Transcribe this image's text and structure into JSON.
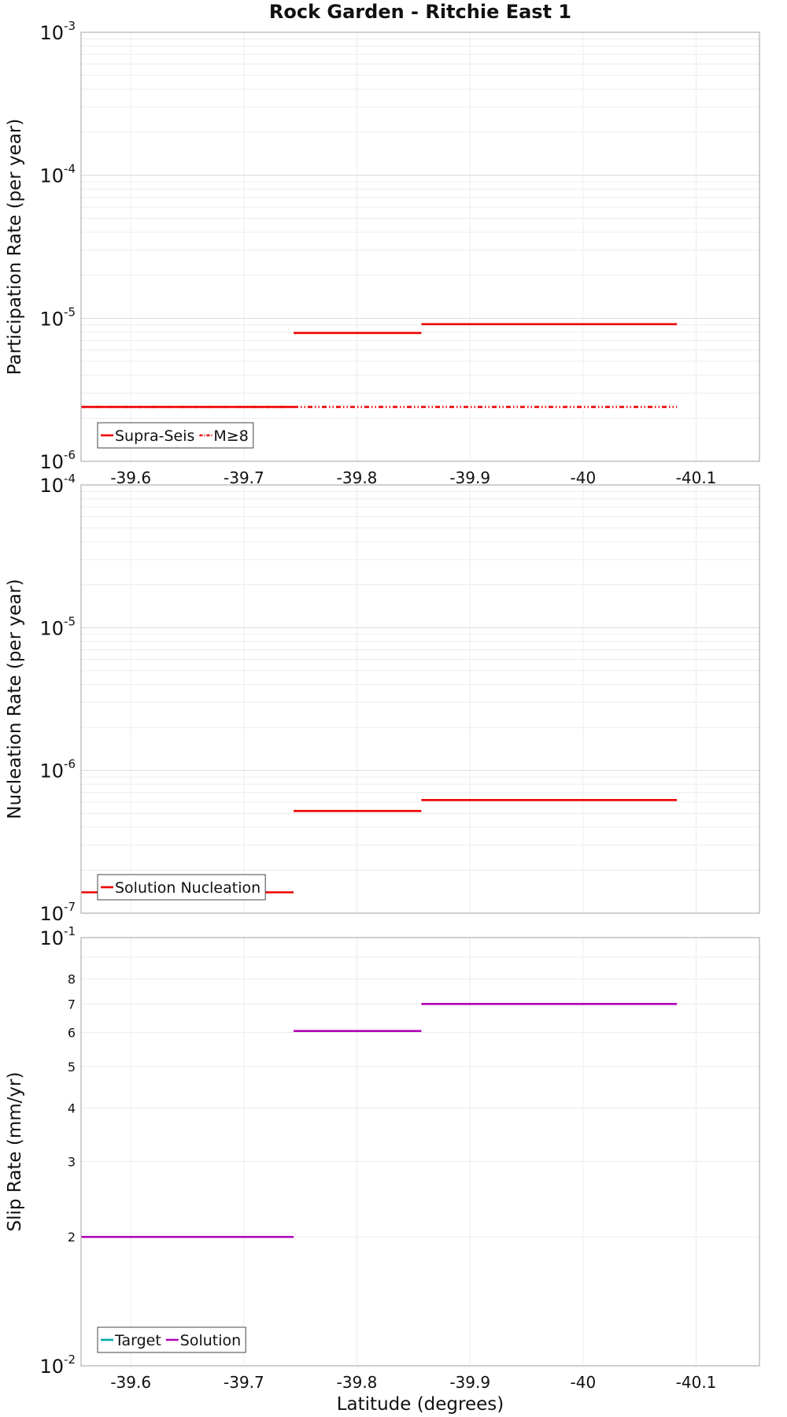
{
  "chart_data": [
    {
      "type": "line",
      "title": "Rock Garden - Ritchie East 1",
      "xlabel": "",
      "ylabel": "Participation Rate (per year)",
      "yscale": "log",
      "ylim": [
        1e-06,
        0.001
      ],
      "xlim": [
        -39.556,
        -40.156
      ],
      "x_ticks": [
        "-39.6",
        "-39.7",
        "-39.8",
        "-39.9",
        "-40",
        "-40.1"
      ],
      "y_ticks": [
        {
          "base": "10",
          "exp": "-6"
        },
        {
          "base": "10",
          "exp": "-5"
        },
        {
          "base": "10",
          "exp": "-4"
        },
        {
          "base": "10",
          "exp": "-3"
        }
      ],
      "grid": true,
      "legend_position": "bottom-left",
      "series": [
        {
          "name": "Supra-Seis",
          "color": "#ee0000",
          "style": "solid",
          "segments": [
            {
              "x": [
                -39.556,
                -39.744
              ],
              "y": 2.4e-06
            },
            {
              "x": [
                -39.744,
                -39.857
              ],
              "y": 7.9e-06
            },
            {
              "x": [
                -39.857,
                -40.083
              ],
              "y": 9.1e-06
            }
          ]
        },
        {
          "name": "M≥8",
          "color": "#ee0000",
          "style": "dashdotdot",
          "segments": [
            {
              "x": [
                -39.556,
                -40.083
              ],
              "y": 2.4e-06
            }
          ]
        }
      ]
    },
    {
      "type": "line",
      "title": "",
      "xlabel": "",
      "ylabel": "Nucleation Rate (per year)",
      "yscale": "log",
      "ylim": [
        1e-07,
        0.0001
      ],
      "xlim": [
        -39.556,
        -40.156
      ],
      "x_ticks": [],
      "y_ticks": [
        {
          "base": "10",
          "exp": "-7"
        },
        {
          "base": "10",
          "exp": "-6"
        },
        {
          "base": "10",
          "exp": "-5"
        },
        {
          "base": "10",
          "exp": "-4"
        }
      ],
      "grid": true,
      "legend_position": "bottom-left",
      "series": [
        {
          "name": "Solution Nucleation",
          "color": "#ee0000",
          "style": "solid",
          "segments": [
            {
              "x": [
                -39.556,
                -39.744
              ],
              "y": 1.4e-07
            },
            {
              "x": [
                -39.744,
                -39.857
              ],
              "y": 5.2e-07
            },
            {
              "x": [
                -39.857,
                -40.083
              ],
              "y": 6.2e-07
            }
          ]
        }
      ]
    },
    {
      "type": "line",
      "title": "",
      "xlabel": "Latitude (degrees)",
      "ylabel": "Slip Rate (mm/yr)",
      "yscale": "log",
      "ylim": [
        0.01,
        0.1
      ],
      "xlim": [
        -39.556,
        -40.156
      ],
      "x_ticks": [
        "-39.6",
        "-39.7",
        "-39.8",
        "-39.9",
        "-40",
        "-40.1"
      ],
      "y_ticks": [
        {
          "base": "10",
          "exp": "-2"
        },
        {
          "base": "10",
          "exp": "-1"
        }
      ],
      "y_minor_labels": [
        "2",
        "3",
        "4",
        "5",
        "6",
        "7",
        "8"
      ],
      "grid": true,
      "legend_position": "bottom-left",
      "series": [
        {
          "name": "Target",
          "color": "#00a8a8",
          "style": "solid",
          "segments": []
        },
        {
          "name": "Solution",
          "color": "#b000b8",
          "style": "solid",
          "segments": [
            {
              "x": [
                -39.556,
                -39.744
              ],
              "y": 0.02
            },
            {
              "x": [
                -39.744,
                -39.857
              ],
              "y": 0.0605
            },
            {
              "x": [
                -39.857,
                -40.083
              ],
              "y": 0.07
            }
          ]
        }
      ]
    }
  ]
}
